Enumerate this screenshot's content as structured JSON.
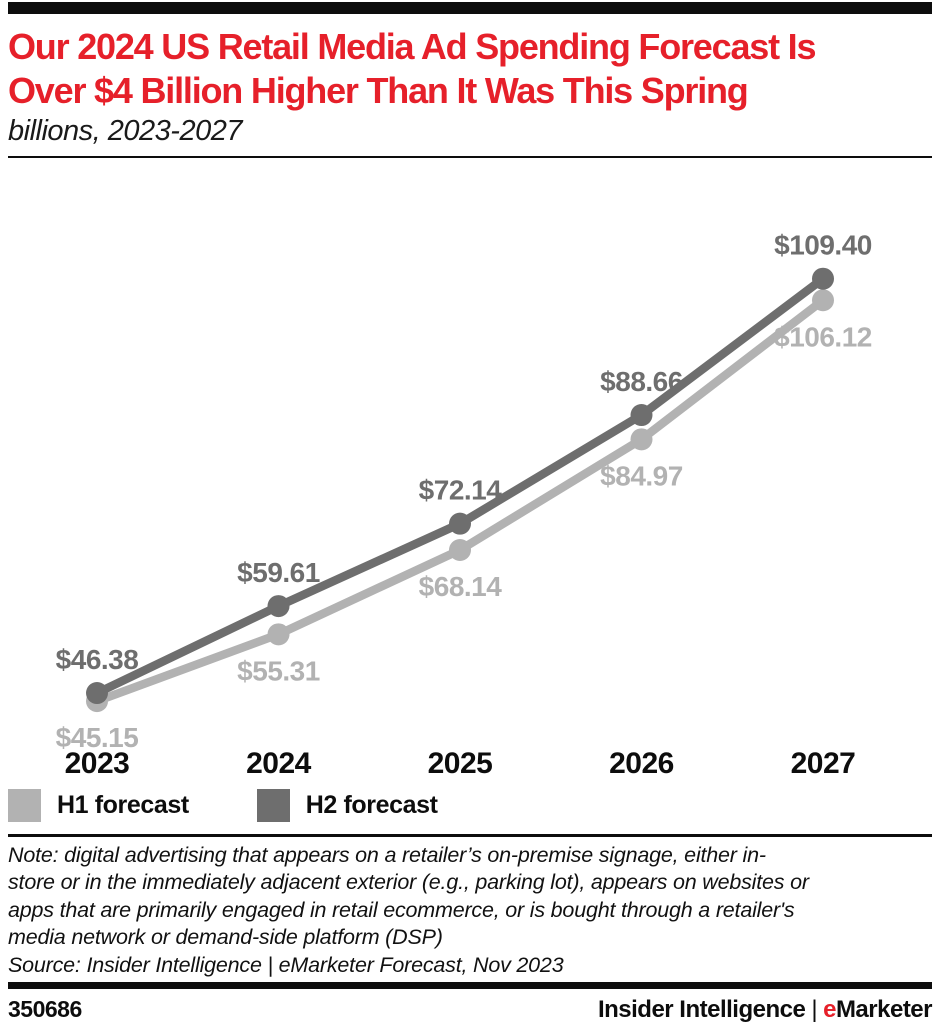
{
  "colors": {
    "accent_red": "#e6202a",
    "h1_gray": "#b2b2b2",
    "h2_gray": "#6e6e6e",
    "black": "#0d0d0d"
  },
  "header": {
    "title_lines": [
      "Our 2024 US Retail Media Ad Spending Forecast Is",
      "Over $4 Billion Higher Than It Was This Spring"
    ],
    "subtitle": "billions, 2023-2027"
  },
  "chart_data": {
    "type": "line",
    "title": "Our 2024 US Retail Media Ad Spending Forecast Is Over $4 Billion Higher Than It Was This Spring",
    "units": "billions, 2023-2027",
    "categories": [
      "2023",
      "2024",
      "2025",
      "2026",
      "2027"
    ],
    "series": [
      {
        "name": "H1 forecast",
        "color": "#b2b2b2",
        "values": [
          45.15,
          55.31,
          68.14,
          84.97,
          106.12
        ],
        "label_position": "below"
      },
      {
        "name": "H2 forecast",
        "color": "#6e6e6e",
        "values": [
          46.38,
          59.61,
          72.14,
          88.66,
          109.4
        ],
        "label_position": "above"
      }
    ],
    "value_prefix": "$",
    "value_decimals": 2,
    "ylim": [
      40,
      120
    ],
    "grid": false,
    "legend_position": "bottom-left"
  },
  "legend": [
    {
      "label": "H1 forecast",
      "color": "#b2b2b2"
    },
    {
      "label": "H2 forecast",
      "color": "#6e6e6e"
    }
  ],
  "note_lines": [
    "Note: digital advertising that appears on a retailer’s on-premise signage, either in-",
    "store or in the immediately adjacent exterior (e.g., parking lot), appears on websites or",
    "apps that are primarily engaged in retail ecommerce, or is bought through a retailer's",
    "media network or demand-side platform (DSP)"
  ],
  "source_line": "Source: Insider Intelligence | eMarketer Forecast, Nov 2023",
  "footer": {
    "chart_id": "350686",
    "brand_left": "Insider Intelligence",
    "brand_separator": "|",
    "brand_e": "e",
    "brand_rest": "Marketer"
  }
}
